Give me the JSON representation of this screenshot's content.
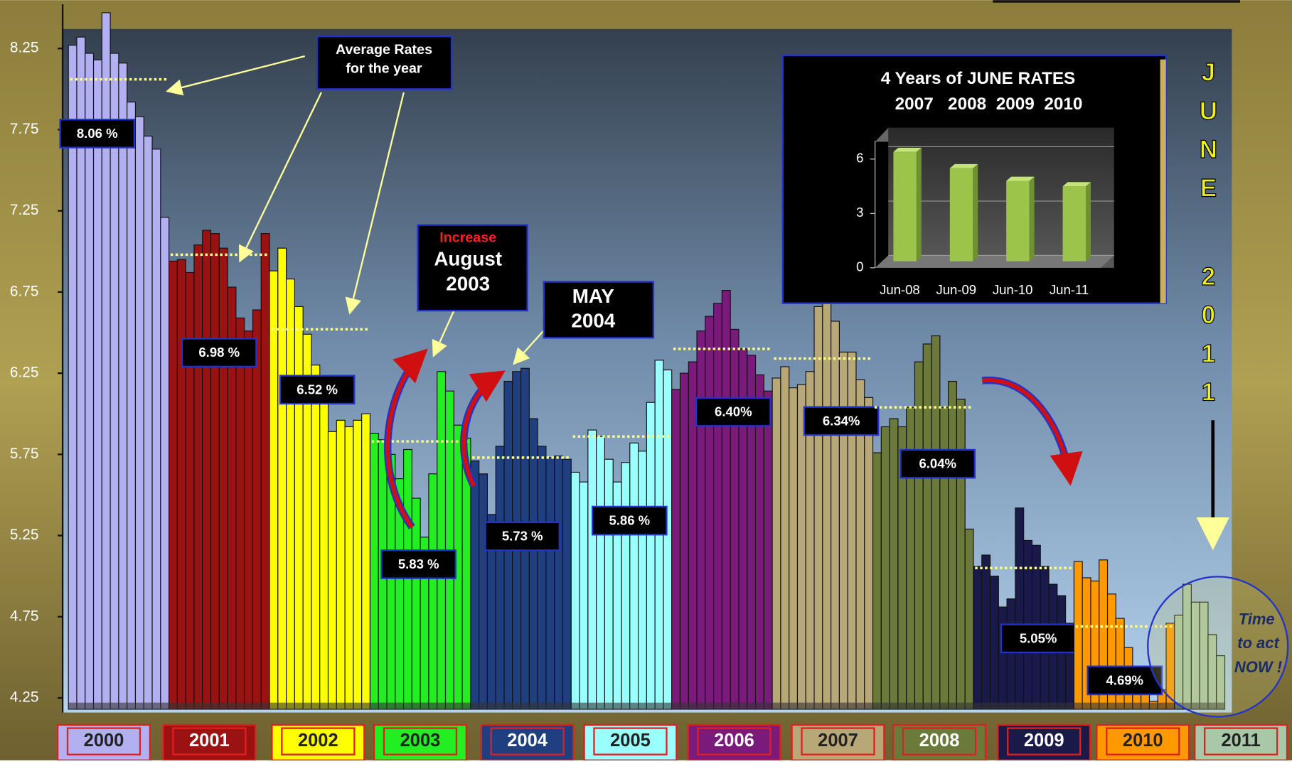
{
  "chart_data": [
    {
      "type": "bar",
      "ylim": [
        4.16,
        8.37
      ],
      "yticks": [
        4.25,
        4.75,
        5.25,
        5.75,
        6.25,
        6.75,
        7.25,
        7.75,
        8.25
      ],
      "series": [
        {
          "name": "2000",
          "color": "#b3b0f2",
          "values": [
            8.27,
            8.32,
            8.22,
            8.18,
            8.47,
            8.22,
            8.16,
            7.92,
            7.83,
            7.71,
            7.63,
            7.21
          ],
          "average": 8.06,
          "average_label": "8.06 %"
        },
        {
          "name": "2001",
          "color": "#9b1212",
          "values": [
            6.94,
            6.95,
            6.87,
            7.04,
            7.13,
            7.11,
            7.02,
            6.78,
            6.59,
            6.51,
            6.64,
            7.11
          ],
          "average": 6.98,
          "average_label": "6.98 %"
        },
        {
          "name": "2002",
          "color": "#ffff00",
          "values": [
            6.88,
            7.02,
            6.83,
            6.66,
            6.49,
            6.3,
            6.13,
            5.89,
            5.96,
            5.92,
            5.96,
            6.0
          ],
          "average": 6.52,
          "average_label": "6.52 %"
        },
        {
          "name": "2003",
          "color": "#22ee22",
          "values": [
            5.88,
            5.84,
            5.75,
            5.6,
            5.78,
            5.48,
            5.24,
            5.63,
            6.26,
            6.14,
            5.93,
            5.85
          ],
          "average": 5.83,
          "average_label": "5.83 %"
        },
        {
          "name": "2004",
          "color": "#1f3f80",
          "values": [
            5.71,
            5.63,
            5.38,
            5.8,
            6.2,
            6.26,
            6.28,
            5.97,
            5.8,
            5.73,
            5.74,
            5.72
          ],
          "average": 5.73,
          "average_label": "5.73 %"
        },
        {
          "name": "2005",
          "color": "#99ffff",
          "values": [
            5.64,
            5.58,
            5.9,
            5.86,
            5.72,
            5.58,
            5.7,
            5.82,
            5.77,
            6.07,
            6.33,
            6.27
          ],
          "average": 5.86,
          "average_label": "5.86 %"
        },
        {
          "name": "2006",
          "color": "#7a1a7a",
          "values": [
            6.15,
            6.25,
            6.32,
            6.51,
            6.6,
            6.68,
            6.76,
            6.52,
            6.4,
            6.36,
            6.24,
            6.14
          ],
          "average": 6.4,
          "average_label": "6.40%"
        },
        {
          "name": "2007",
          "color": "#b8a878",
          "values": [
            6.22,
            6.29,
            6.16,
            6.18,
            6.26,
            6.66,
            6.7,
            6.57,
            6.38,
            6.38,
            6.21,
            6.1
          ],
          "average": 6.34,
          "average_label": "6.34%"
        },
        {
          "name": "2008",
          "color": "#6b7a3a",
          "values": [
            5.76,
            5.92,
            5.97,
            5.92,
            6.04,
            6.32,
            6.43,
            6.48,
            6.04,
            6.2,
            6.09,
            5.29
          ],
          "average": 6.04,
          "average_label": "6.04%"
        },
        {
          "name": "2009",
          "color": "#1a1a4a",
          "values": [
            5.06,
            5.13,
            5.0,
            4.81,
            4.86,
            5.42,
            5.22,
            5.19,
            5.06,
            4.95,
            4.88,
            4.71
          ],
          "average": 5.05,
          "average_label": "5.05%"
        },
        {
          "name": "2010",
          "color": "#ff9900",
          "values": [
            5.09,
            4.99,
            4.97,
            5.1,
            4.89,
            4.74,
            4.56,
            4.43,
            4.35,
            4.23,
            4.3,
            4.71
          ],
          "average": 4.69,
          "average_label": "4.69%"
        },
        {
          "name": "2011",
          "color": "#a8c8a8",
          "values": [
            4.76,
            4.95,
            4.84,
            4.84,
            4.64,
            4.51
          ]
        }
      ],
      "annotations": [
        "Average Rates",
        "for the year",
        "Increase",
        "August",
        "2003",
        "MAY",
        "2004",
        "Time",
        "to act",
        "NOW !"
      ],
      "side_text": [
        "JUNE",
        "2011"
      ]
    },
    {
      "type": "bar",
      "title": "4  Years of JUNE RATES",
      "subtitle": "2007   2008  2009  2010",
      "categories": [
        "Jun-08",
        "Jun-09",
        "Jun-10",
        "Jun-11"
      ],
      "values": [
        6.4,
        5.5,
        4.8,
        4.5
      ],
      "color": "#9cc44a",
      "ylim": [
        0,
        7
      ],
      "yticks": [
        0,
        3,
        6
      ],
      "grid": true
    }
  ]
}
